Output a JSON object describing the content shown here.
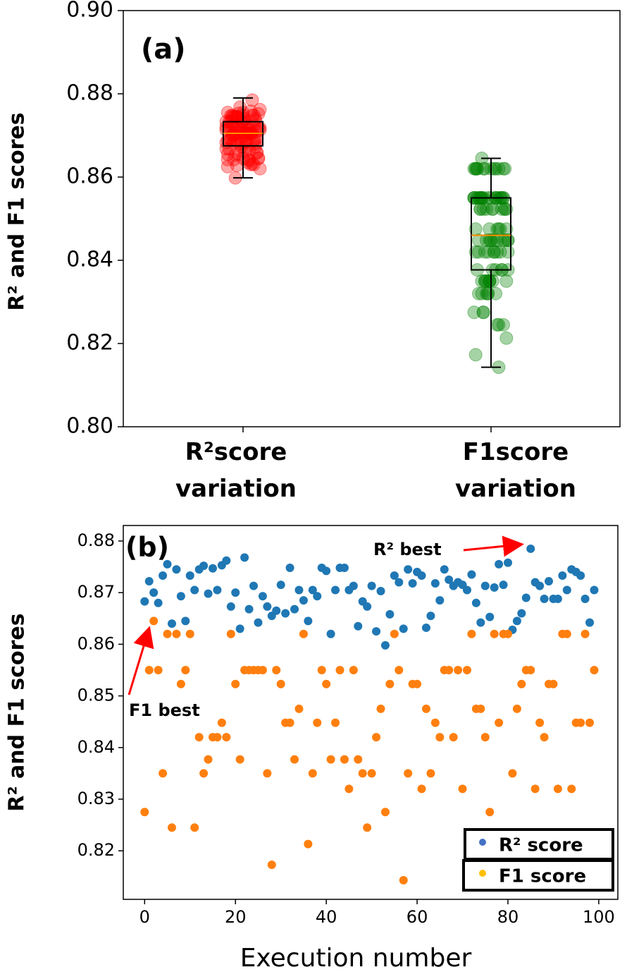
{
  "chart_data": [
    {
      "type": "box",
      "panel_label": "(a)",
      "y_label": "R² and F1 scores",
      "categories": [
        "R²score variation",
        "F1score variation"
      ],
      "boxes": [
        {
          "low": 0.8598,
          "q1": 0.8675,
          "median": 0.8705,
          "q3": 0.8733,
          "high": 0.879
        },
        {
          "low": 0.8143,
          "q1": 0.8377,
          "median": 0.846,
          "q3": 0.855,
          "high": 0.8645
        }
      ],
      "point_colors": [
        "#ff0000",
        "#008000"
      ],
      "box_color": "#000000",
      "median_color": "#ff8c00",
      "ylim": [
        0.8,
        0.9
      ],
      "yticks": [
        {
          "value": 0.8,
          "label": "0.80"
        },
        0.82,
        0.84,
        0.86,
        0.88,
        {
          "value": 0.9,
          "label": "0.90"
        }
      ]
    },
    {
      "type": "scatter",
      "panel_label": "(b)",
      "y_label": "R² and F1 scores",
      "x_label": "Execution number",
      "x": [
        0,
        1,
        2,
        3,
        4,
        5,
        6,
        7,
        8,
        9,
        10,
        11,
        12,
        13,
        14,
        15,
        16,
        17,
        18,
        19,
        20,
        21,
        22,
        23,
        24,
        25,
        26,
        27,
        28,
        29,
        30,
        31,
        32,
        33,
        34,
        35,
        36,
        37,
        38,
        39,
        40,
        41,
        42,
        43,
        44,
        45,
        46,
        47,
        48,
        49,
        50,
        51,
        52,
        53,
        54,
        55,
        56,
        57,
        58,
        59,
        60,
        61,
        62,
        63,
        64,
        65,
        66,
        67,
        68,
        69,
        70,
        71,
        72,
        73,
        74,
        75,
        76,
        77,
        78,
        79,
        80,
        81,
        82,
        83,
        84,
        85,
        86,
        87,
        88,
        89,
        90,
        91,
        92,
        93,
        94,
        95,
        96,
        97,
        98,
        99
      ],
      "series": [
        {
          "name": "R² score",
          "color": "#1f77b4",
          "legend_color": "#4472c4",
          "values": [
            0.8683,
            0.8722,
            0.87,
            0.868,
            0.8733,
            0.8755,
            0.864,
            0.8745,
            0.8693,
            0.8645,
            0.8733,
            0.8705,
            0.8745,
            0.8752,
            0.8698,
            0.8747,
            0.8705,
            0.8753,
            0.8762,
            0.8673,
            0.87,
            0.863,
            0.8768,
            0.8668,
            0.8713,
            0.8642,
            0.8693,
            0.8673,
            0.8655,
            0.8665,
            0.8715,
            0.866,
            0.8748,
            0.8668,
            0.8705,
            0.8685,
            0.8645,
            0.8705,
            0.8693,
            0.8748,
            0.8742,
            0.862,
            0.8705,
            0.8748,
            0.8748,
            0.8705,
            0.8713,
            0.8635,
            0.8683,
            0.8673,
            0.8713,
            0.8625,
            0.8703,
            0.8598,
            0.8658,
            0.8733,
            0.872,
            0.863,
            0.8745,
            0.8718,
            0.874,
            0.8733,
            0.8632,
            0.8655,
            0.8718,
            0.8685,
            0.8745,
            0.8725,
            0.8713,
            0.872,
            0.8715,
            0.8705,
            0.8735,
            0.868,
            0.8642,
            0.8713,
            0.8653,
            0.871,
            0.8755,
            0.8715,
            0.8758,
            0.8628,
            0.8645,
            0.866,
            0.869,
            0.8785,
            0.872,
            0.8713,
            0.8688,
            0.8722,
            0.8688,
            0.8688,
            0.8733,
            0.8705,
            0.8745,
            0.874,
            0.8733,
            0.8688,
            0.8642,
            0.8705
          ]
        },
        {
          "name": "F1 score",
          "color": "#ff7f0e",
          "legend_color": "#ffc000",
          "values": [
            0.8275,
            0.855,
            0.8645,
            0.855,
            0.835,
            0.862,
            0.8245,
            0.862,
            0.8523,
            0.855,
            0.862,
            0.8245,
            0.842,
            0.835,
            0.8377,
            0.842,
            0.842,
            0.8448,
            0.842,
            0.862,
            0.8523,
            0.8377,
            0.855,
            0.855,
            0.855,
            0.855,
            0.855,
            0.835,
            0.8173,
            0.855,
            0.8523,
            0.8448,
            0.8448,
            0.8377,
            0.8475,
            0.862,
            0.8213,
            0.835,
            0.8448,
            0.855,
            0.8523,
            0.8377,
            0.8448,
            0.855,
            0.8377,
            0.832,
            0.855,
            0.8377,
            0.835,
            0.8245,
            0.835,
            0.842,
            0.8475,
            0.8275,
            0.8523,
            0.862,
            0.855,
            0.8143,
            0.835,
            0.8523,
            0.8523,
            0.832,
            0.8475,
            0.835,
            0.8448,
            0.842,
            0.855,
            0.855,
            0.842,
            0.855,
            0.832,
            0.855,
            0.862,
            0.8475,
            0.8475,
            0.842,
            0.8275,
            0.862,
            0.8448,
            0.862,
            0.862,
            0.835,
            0.8475,
            0.8523,
            0.855,
            0.855,
            0.832,
            0.8448,
            0.842,
            0.8523,
            0.8523,
            0.832,
            0.862,
            0.862,
            0.832,
            0.8448,
            0.8448,
            0.862,
            0.8448,
            0.855
          ]
        }
      ],
      "annotations": [
        "R² best",
        "F1 best"
      ],
      "annotation_color": "#ff0000",
      "xlim": [
        -4.7,
        104.2
      ],
      "xticks": [
        0,
        20,
        40,
        60,
        80,
        100
      ],
      "ylim": [
        0.8106,
        0.883
      ],
      "yticks": [
        0.82,
        0.83,
        0.84,
        0.85,
        0.86,
        0.87,
        0.88
      ]
    }
  ]
}
